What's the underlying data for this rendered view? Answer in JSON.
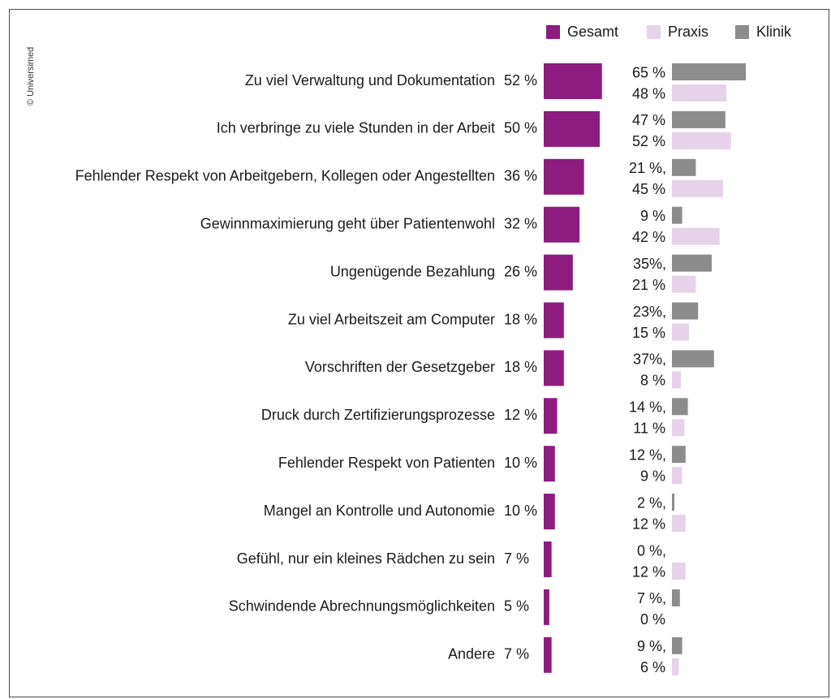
{
  "copyright": "© Universimed",
  "legend": [
    {
      "label": "Gesamt",
      "color": "#8e1c7e"
    },
    {
      "label": "Praxis",
      "color": "#e6d3ea"
    },
    {
      "label": "Klinik",
      "color": "#8c8c8c"
    }
  ],
  "colors": {
    "gesamt": "#8e1c7e",
    "praxis": "#e6d3ea",
    "klinik": "#8c8c8c"
  },
  "chart_data": {
    "type": "bar",
    "categories": [
      "Zu viel Verwaltung und Dokumentation",
      "Ich verbringe zu viele Stunden in der Arbeit",
      "Fehlender Respekt von Arbeitgebern, Kollegen oder Angestellten",
      "Gewinnmaximierung geht über Patientenwohl",
      "Ungenügende Bezahlung",
      "Zu viel Arbeitszeit am Computer",
      "Vorschriften der Gesetzgeber",
      "Druck durch Zertifizierungsprozesse",
      "Fehlender Respekt von Patienten",
      "Mangel an Kontrolle und Autonomie",
      "Gefühl, nur ein kleines Rädchen zu sein",
      "Schwindende Abrechnungsmöglichkeiten",
      "Andere"
    ],
    "series": [
      {
        "name": "Gesamt",
        "values": [
          52,
          50,
          36,
          32,
          26,
          18,
          18,
          12,
          10,
          10,
          7,
          5,
          7
        ],
        "labels": [
          "52 %",
          "50 %",
          "36 %",
          "32 %",
          "26 %",
          "18 %",
          "18 %",
          "12 %",
          "10 %",
          "10 %",
          "7 %",
          "5 %",
          "7 %"
        ]
      },
      {
        "name": "Klinik",
        "values": [
          65,
          47,
          21,
          9,
          35,
          23,
          37,
          14,
          12,
          2,
          0,
          7,
          9
        ],
        "labels": [
          "65 %",
          "47 %",
          "21 %,",
          "9 %",
          "35%,",
          "23%,",
          "37%,",
          "14 %,",
          "12 %,",
          "2 %,",
          "0 %,",
          "7 %,",
          "9 %,"
        ]
      },
      {
        "name": "Praxis",
        "values": [
          48,
          52,
          45,
          42,
          21,
          15,
          8,
          11,
          9,
          12,
          12,
          0,
          6
        ],
        "labels": [
          "48 %",
          "52 %",
          "45 %",
          "42 %",
          "21 %",
          "15 %",
          "8 %",
          "11 %",
          "9 %",
          "12 %",
          "12 %",
          "0 %",
          "6 %"
        ]
      }
    ],
    "xlim": [
      0,
      100
    ],
    "grid": false,
    "legend_position": "top-right"
  }
}
